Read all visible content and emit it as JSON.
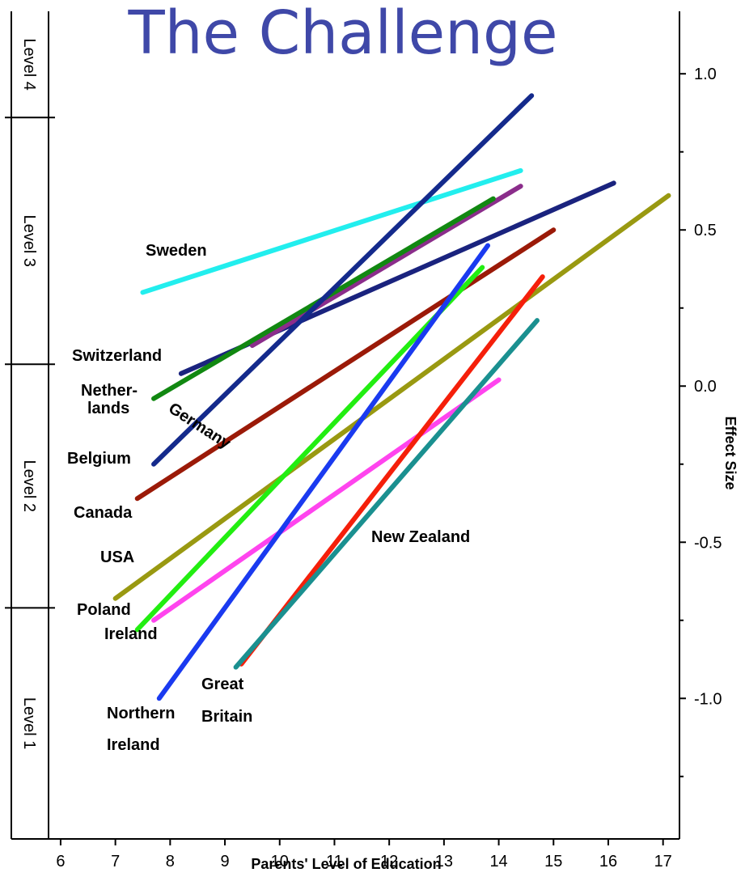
{
  "chart_data": {
    "type": "line",
    "title": "The Challenge",
    "xlabel": "Parents' Level of Education",
    "ylabel": "Effect Size",
    "xlim": [
      5.1,
      17.3
    ],
    "ylim": [
      -1.45,
      1.2
    ],
    "x_ticks": [
      6,
      7,
      8,
      9,
      10,
      11,
      12,
      13,
      14,
      15,
      16,
      17
    ],
    "y_ticks": [
      1.0,
      0.5,
      0.0,
      -0.5,
      -1.0
    ],
    "y_tick_labels": [
      "1.0",
      "0.5",
      "0.0",
      "-0.5",
      "-1.0"
    ],
    "level_bands": [
      {
        "label": "Level 4",
        "from": 0.86,
        "to": 1.2
      },
      {
        "label": "Level 3",
        "from": 0.07,
        "to": 0.86
      },
      {
        "label": "Level 2",
        "from": -0.71,
        "to": 0.07
      },
      {
        "label": "Level 1",
        "from": -1.45,
        "to": -0.71
      }
    ],
    "grid": false,
    "legend": "none",
    "series": [
      {
        "name": "Sweden",
        "color": "#22eeee",
        "x": [
          7.5,
          14.4
        ],
        "y": [
          0.3,
          0.69
        ]
      },
      {
        "name": "Switzerland",
        "color": "#1a237e",
        "x": [
          8.2,
          16.1
        ],
        "y": [
          0.04,
          0.65
        ]
      },
      {
        "name": "Germany",
        "color": "#8b2d8b",
        "x": [
          9.5,
          14.4
        ],
        "y": [
          0.13,
          0.64
        ]
      },
      {
        "name": "Nether-lands",
        "color": "#118811",
        "x": [
          7.7,
          13.9
        ],
        "y": [
          -0.04,
          0.6
        ]
      },
      {
        "name": "Belgium",
        "color": "#142a8c",
        "x": [
          7.7,
          14.6
        ],
        "y": [
          -0.25,
          0.93
        ]
      },
      {
        "name": "Canada",
        "color": "#9b1a08",
        "x": [
          7.4,
          15.0
        ],
        "y": [
          -0.36,
          0.5
        ]
      },
      {
        "name": "USA",
        "color": "#999911",
        "x": [
          7.0,
          17.1
        ],
        "y": [
          -0.68,
          0.61
        ]
      },
      {
        "name": "Poland",
        "color": "#ff44ee",
        "x": [
          7.7,
          14.0
        ],
        "y": [
          -0.75,
          0.02
        ]
      },
      {
        "name": "Ireland",
        "color": "#22ee11",
        "x": [
          7.4,
          13.7
        ],
        "y": [
          -0.78,
          0.38
        ]
      },
      {
        "name": "Northern Ireland",
        "color": "#1a3af0",
        "x": [
          7.8,
          13.8
        ],
        "y": [
          -1.0,
          0.45
        ]
      },
      {
        "name": "Great Britain",
        "color": "#f51f0a",
        "x": [
          9.3,
          14.8
        ],
        "y": [
          -0.89,
          0.35
        ]
      },
      {
        "name": "New Zealand",
        "color": "#1a9090",
        "x": [
          9.2,
          14.7
        ],
        "y": [
          -0.9,
          0.21
        ]
      }
    ],
    "annotations": [
      {
        "text": "Sweden"
      },
      {
        "text": "Switzerland"
      },
      {
        "text": "Nether-"
      },
      {
        "text": "lands"
      },
      {
        "text": "Germany"
      },
      {
        "text": "Belgium"
      },
      {
        "text": "Canada"
      },
      {
        "text": "USA"
      },
      {
        "text": "Poland"
      },
      {
        "text": "Ireland"
      },
      {
        "text": "Northern"
      },
      {
        "text": "Ireland"
      },
      {
        "text": "Great"
      },
      {
        "text": "Britain"
      },
      {
        "text": "New Zealand"
      }
    ]
  }
}
